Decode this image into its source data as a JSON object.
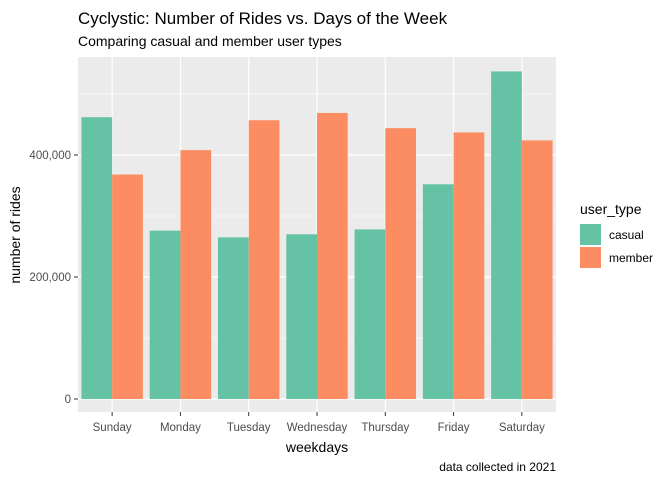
{
  "chart_data": {
    "type": "bar",
    "title": "Cyclystic: Number of Rides vs. Days of the Week",
    "subtitle": "Comparing casual and member user types",
    "caption": "data collected in 2021",
    "xlabel": "weekdays",
    "ylabel": "number of rides",
    "categories": [
      "Sunday",
      "Monday",
      "Tuesday",
      "Wednesday",
      "Thursday",
      "Friday",
      "Saturday"
    ],
    "series": [
      {
        "name": "casual",
        "color": "#66c2a5",
        "values": [
          462000,
          276000,
          265000,
          270000,
          278000,
          352000,
          537000
        ]
      },
      {
        "name": "member",
        "color": "#fc8d62",
        "values": [
          368000,
          408000,
          457000,
          469000,
          444000,
          437000,
          424000
        ]
      }
    ],
    "ylim": [
      0,
      560000
    ],
    "yticks": [
      0,
      200000,
      400000
    ],
    "ytick_labels": [
      "0",
      "200,000",
      "400,000"
    ],
    "legend": {
      "title": "user_type",
      "placement": "right"
    },
    "grid": true
  }
}
